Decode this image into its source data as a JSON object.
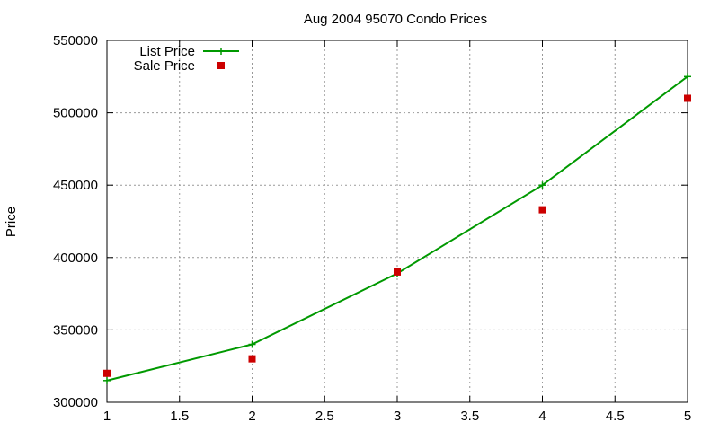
{
  "chart_data": {
    "type": "line",
    "title": "Aug 2004 95070 Condo Prices",
    "xlabel": "",
    "ylabel": "Price",
    "xlim": [
      1,
      5
    ],
    "ylim": [
      300000,
      550000
    ],
    "x_ticks": [
      "1",
      "1.5",
      "2",
      "2.5",
      "3",
      "3.5",
      "4",
      "4.5",
      "5"
    ],
    "y_ticks": [
      "300000",
      "350000",
      "400000",
      "450000",
      "500000",
      "550000"
    ],
    "grid": true,
    "legend_position": "top-left",
    "series": [
      {
        "name": "List Price",
        "style": "line+cross-markers",
        "color": "#009900",
        "x": [
          1,
          2,
          3,
          4,
          5
        ],
        "y": [
          315000,
          340000,
          389000,
          450000,
          525000
        ]
      },
      {
        "name": "Sale Price",
        "style": "square-markers",
        "color": "#cc0000",
        "x": [
          1,
          2,
          3,
          4,
          5
        ],
        "y": [
          320000,
          330000,
          390000,
          433000,
          510000
        ]
      }
    ]
  }
}
